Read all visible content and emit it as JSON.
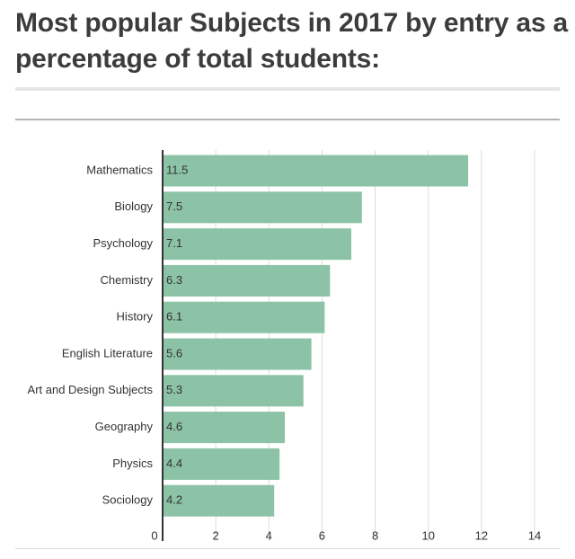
{
  "title": "Most popular Subjects in 2017 by entry as a percentage of total students:",
  "chart_data": {
    "type": "bar",
    "orientation": "horizontal",
    "title": "Most popular Subjects in 2017 by entry as a percentage of total students:",
    "xlabel": "",
    "ylabel": "",
    "categories": [
      "Mathematics",
      "Biology",
      "Psychology",
      "Chemistry",
      "History",
      "English Literature",
      "Art and Design Subjects",
      "Geography",
      "Physics",
      "Sociology"
    ],
    "values": [
      11.5,
      7.5,
      7.1,
      6.3,
      6.1,
      5.6,
      5.3,
      4.6,
      4.4,
      4.2
    ],
    "value_labels": [
      "11.5",
      "7.5",
      "7.1",
      "6.3",
      "6.1",
      "5.6",
      "5.3",
      "4.6",
      "4.4",
      "4.2"
    ],
    "xlim": [
      0,
      14
    ],
    "xticks": [
      0,
      2,
      4,
      6,
      8,
      10,
      12,
      14
    ],
    "xtick_labels": [
      "0",
      "2",
      "4",
      "6",
      "8",
      "10",
      "12",
      "14"
    ],
    "grid": true,
    "legend": "none",
    "bar_color": "#8cc2a5"
  }
}
